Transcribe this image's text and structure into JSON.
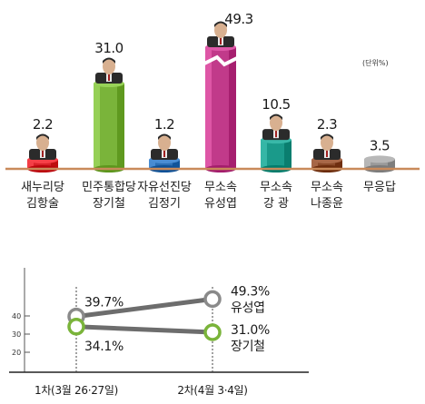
{
  "chart_data": [
    {
      "type": "bar",
      "unit_note": "(단위%)",
      "categories": [
        {
          "party": "새누리당",
          "name": "김항술",
          "value": 2.2,
          "color": "#d9222a",
          "photo": true
        },
        {
          "party": "민주통합당",
          "name": "장기철",
          "value": 31.0,
          "color": "#7ab43a",
          "photo": true
        },
        {
          "party": "자유선진당",
          "name": "김정기",
          "value": 1.2,
          "color": "#2c6fb5",
          "photo": true
        },
        {
          "party": "무소속",
          "name": "유성엽",
          "value": 49.3,
          "color": "#c13a8a",
          "photo": true,
          "broken_axis": true
        },
        {
          "party": "무소속",
          "name": "강 광",
          "value": 10.5,
          "color": "#1a9a8a",
          "photo": true
        },
        {
          "party": "무소속",
          "name": "나종윤",
          "value": 2.3,
          "color": "#8a4a2a",
          "photo": true
        },
        {
          "party": "",
          "name": "무응답",
          "value": 3.5,
          "color": "#9a9a9a",
          "photo": false
        }
      ],
      "value_labels": [
        "2.2",
        "31.0",
        "1.2",
        "49.3",
        "10.5",
        "2.3",
        "3.5"
      ]
    },
    {
      "type": "line",
      "x": [
        "1차(3월 26·27일)",
        "2차(4월 3·4일)"
      ],
      "yticks": [
        "20",
        "30",
        "40"
      ],
      "ylim": [
        15,
        50
      ],
      "series": [
        {
          "name": "유성엽",
          "values": [
            39.7,
            49.3
          ],
          "labels": [
            "39.7%",
            "49.3%"
          ],
          "line_color": "#6d6d6d",
          "marker_color": "#8a8a8a"
        },
        {
          "name": "장기철",
          "values": [
            34.1,
            31.0
          ],
          "labels": [
            "34.1%",
            "31.0%"
          ],
          "line_color": "#6d6d6d",
          "marker_color": "#7ab43a"
        }
      ]
    }
  ]
}
